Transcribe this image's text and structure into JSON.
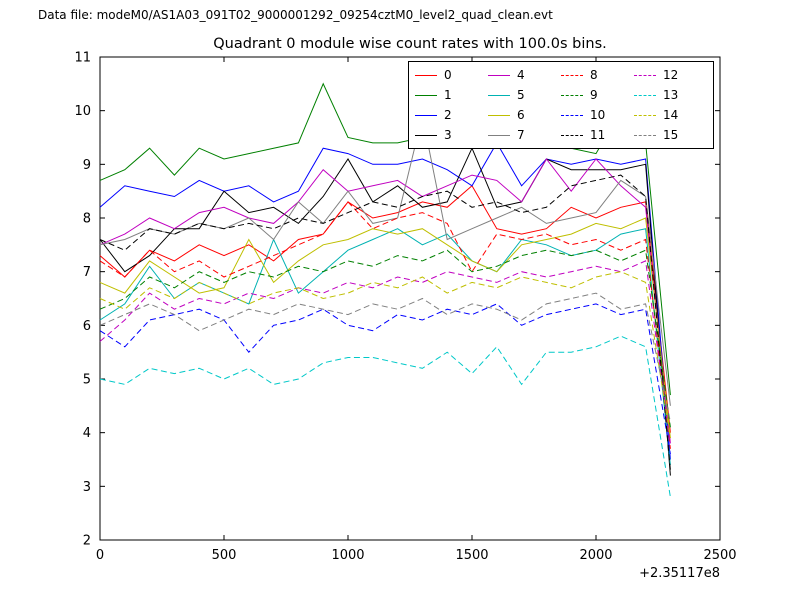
{
  "header": {
    "text": "Data file: modeM0/AS1A03_091T02_9000001292_09254cztM0_level2_quad_clean.evt"
  },
  "chart_data": {
    "type": "line",
    "title": "Quadrant 0 module wise count rates with 100.0s bins.",
    "xlabel": "",
    "ylabel": "",
    "xlim": [
      0,
      2500
    ],
    "ylim": [
      2,
      11
    ],
    "xticks": [
      0,
      500,
      1000,
      1500,
      2000,
      2500
    ],
    "yticks": [
      2,
      3,
      4,
      5,
      6,
      7,
      8,
      9,
      10,
      11
    ],
    "x_offset_label": "+2.35117e8",
    "grid": false,
    "legend_position": "upper center",
    "x": [
      0,
      100,
      200,
      300,
      400,
      500,
      600,
      700,
      800,
      900,
      1000,
      1100,
      1200,
      1300,
      1400,
      1500,
      1600,
      1700,
      1800,
      1900,
      2000,
      2100,
      2200,
      2300
    ],
    "series": [
      {
        "name": "0",
        "color": "#ff0000",
        "dash": false,
        "values": [
          7.3,
          6.9,
          7.4,
          7.2,
          7.5,
          7.3,
          7.5,
          7.2,
          7.6,
          7.7,
          8.3,
          8.0,
          8.1,
          8.3,
          8.2,
          8.6,
          7.8,
          7.7,
          7.8,
          8.2,
          8.0,
          8.2,
          8.3,
          4.0
        ]
      },
      {
        "name": "1",
        "color": "#008000",
        "dash": false,
        "values": [
          8.7,
          8.9,
          9.3,
          8.8,
          9.3,
          9.1,
          9.2,
          9.3,
          9.4,
          10.5,
          9.5,
          9.4,
          9.4,
          9.5,
          9.4,
          9.4,
          9.3,
          10.5,
          9.4,
          9.3,
          9.2,
          10.0,
          9.4,
          4.7
        ]
      },
      {
        "name": "2",
        "color": "#0000ff",
        "dash": false,
        "values": [
          8.2,
          8.6,
          8.5,
          8.4,
          8.7,
          8.5,
          8.6,
          8.3,
          8.5,
          9.3,
          9.2,
          9.0,
          9.0,
          9.1,
          8.9,
          8.6,
          9.4,
          8.6,
          9.1,
          9.0,
          9.1,
          9.0,
          9.1,
          3.5
        ]
      },
      {
        "name": "3",
        "color": "#000000",
        "dash": false,
        "values": [
          7.6,
          7.0,
          7.3,
          7.8,
          7.8,
          8.5,
          8.1,
          8.2,
          7.9,
          8.4,
          9.1,
          8.3,
          8.6,
          8.2,
          8.3,
          9.3,
          8.2,
          8.3,
          9.1,
          8.9,
          8.9,
          8.9,
          9.0,
          3.2
        ]
      },
      {
        "name": "4",
        "color": "#c000c0",
        "dash": false,
        "values": [
          7.5,
          7.7,
          8.0,
          7.8,
          8.1,
          8.2,
          8.0,
          7.9,
          8.3,
          8.9,
          8.5,
          8.6,
          8.7,
          8.4,
          8.6,
          8.8,
          8.7,
          8.3,
          9.1,
          8.5,
          9.1,
          8.6,
          8.2,
          3.8
        ]
      },
      {
        "name": "5",
        "color": "#00b2b2",
        "dash": false,
        "values": [
          6.1,
          6.4,
          7.1,
          6.5,
          6.8,
          6.6,
          6.4,
          7.6,
          6.6,
          7.0,
          7.4,
          7.6,
          7.8,
          7.5,
          7.7,
          7.2,
          7.0,
          7.6,
          7.5,
          7.3,
          7.4,
          7.7,
          7.8,
          3.4
        ]
      },
      {
        "name": "6",
        "color": "#bfbf00",
        "dash": false,
        "values": [
          6.8,
          6.6,
          7.2,
          6.9,
          6.6,
          6.7,
          7.6,
          6.8,
          7.2,
          7.5,
          7.6,
          7.8,
          7.7,
          7.8,
          7.5,
          7.2,
          7.0,
          7.5,
          7.6,
          7.7,
          7.9,
          7.8,
          8.0,
          3.9
        ]
      },
      {
        "name": "7",
        "color": "#808080",
        "dash": false,
        "values": [
          7.5,
          7.6,
          7.8,
          7.7,
          7.9,
          7.8,
          8.0,
          7.6,
          8.3,
          7.9,
          8.5,
          7.9,
          8.0,
          9.9,
          7.6,
          7.8,
          8.0,
          8.2,
          7.9,
          8.0,
          8.1,
          8.7,
          8.4,
          4.5
        ]
      },
      {
        "name": "8",
        "color": "#ff0000",
        "dash": true,
        "values": [
          7.2,
          6.9,
          7.4,
          7.0,
          7.2,
          6.9,
          7.1,
          7.3,
          7.5,
          7.7,
          8.3,
          7.8,
          8.0,
          8.1,
          7.9,
          7.0,
          7.7,
          7.6,
          7.7,
          7.5,
          7.6,
          7.4,
          7.6,
          3.7
        ]
      },
      {
        "name": "9",
        "color": "#008000",
        "dash": true,
        "values": [
          6.3,
          6.5,
          6.9,
          6.7,
          7.0,
          6.8,
          7.0,
          6.9,
          7.1,
          7.0,
          7.2,
          7.1,
          7.3,
          7.2,
          7.4,
          7.0,
          7.1,
          7.3,
          7.4,
          7.3,
          7.4,
          7.2,
          7.4,
          4.1
        ]
      },
      {
        "name": "10",
        "color": "#0000ff",
        "dash": true,
        "values": [
          5.9,
          5.6,
          6.1,
          6.2,
          6.3,
          6.1,
          5.5,
          6.0,
          6.1,
          6.3,
          6.0,
          5.9,
          6.2,
          6.1,
          6.3,
          6.2,
          6.4,
          6.0,
          6.2,
          6.3,
          6.4,
          6.2,
          6.3,
          3.6
        ]
      },
      {
        "name": "11",
        "color": "#000000",
        "dash": true,
        "values": [
          7.6,
          7.4,
          7.8,
          7.7,
          7.9,
          7.8,
          7.9,
          7.8,
          8.0,
          7.9,
          8.1,
          8.3,
          8.2,
          8.4,
          8.5,
          8.2,
          8.3,
          8.1,
          8.2,
          8.6,
          8.7,
          8.8,
          8.4,
          3.3
        ]
      },
      {
        "name": "12",
        "color": "#c000c0",
        "dash": true,
        "values": [
          5.7,
          6.1,
          6.6,
          6.3,
          6.5,
          6.4,
          6.6,
          6.5,
          6.7,
          6.6,
          6.8,
          6.7,
          6.9,
          6.8,
          7.0,
          6.9,
          6.8,
          7.0,
          6.9,
          7.0,
          7.1,
          7.0,
          7.2,
          3.8
        ]
      },
      {
        "name": "13",
        "color": "#00c8c8",
        "dash": true,
        "values": [
          5.0,
          4.9,
          5.2,
          5.1,
          5.2,
          5.0,
          5.2,
          4.9,
          5.0,
          5.3,
          5.4,
          5.4,
          5.3,
          5.2,
          5.5,
          5.1,
          5.6,
          4.9,
          5.5,
          5.5,
          5.6,
          5.8,
          5.6,
          2.8
        ]
      },
      {
        "name": "14",
        "color": "#bfbf00",
        "dash": true,
        "values": [
          6.5,
          6.3,
          6.7,
          6.5,
          6.8,
          6.6,
          6.4,
          6.6,
          6.7,
          6.5,
          6.6,
          6.8,
          6.7,
          6.9,
          6.6,
          6.8,
          6.7,
          6.9,
          6.8,
          6.7,
          6.9,
          7.0,
          6.8,
          3.9
        ]
      },
      {
        "name": "15",
        "color": "#808080",
        "dash": true,
        "values": [
          6.0,
          6.2,
          6.4,
          6.2,
          5.9,
          6.1,
          6.3,
          6.2,
          6.4,
          6.3,
          6.2,
          6.4,
          6.3,
          6.5,
          6.2,
          6.4,
          6.3,
          6.1,
          6.4,
          6.5,
          6.6,
          6.3,
          6.4,
          4.2
        ]
      }
    ]
  }
}
